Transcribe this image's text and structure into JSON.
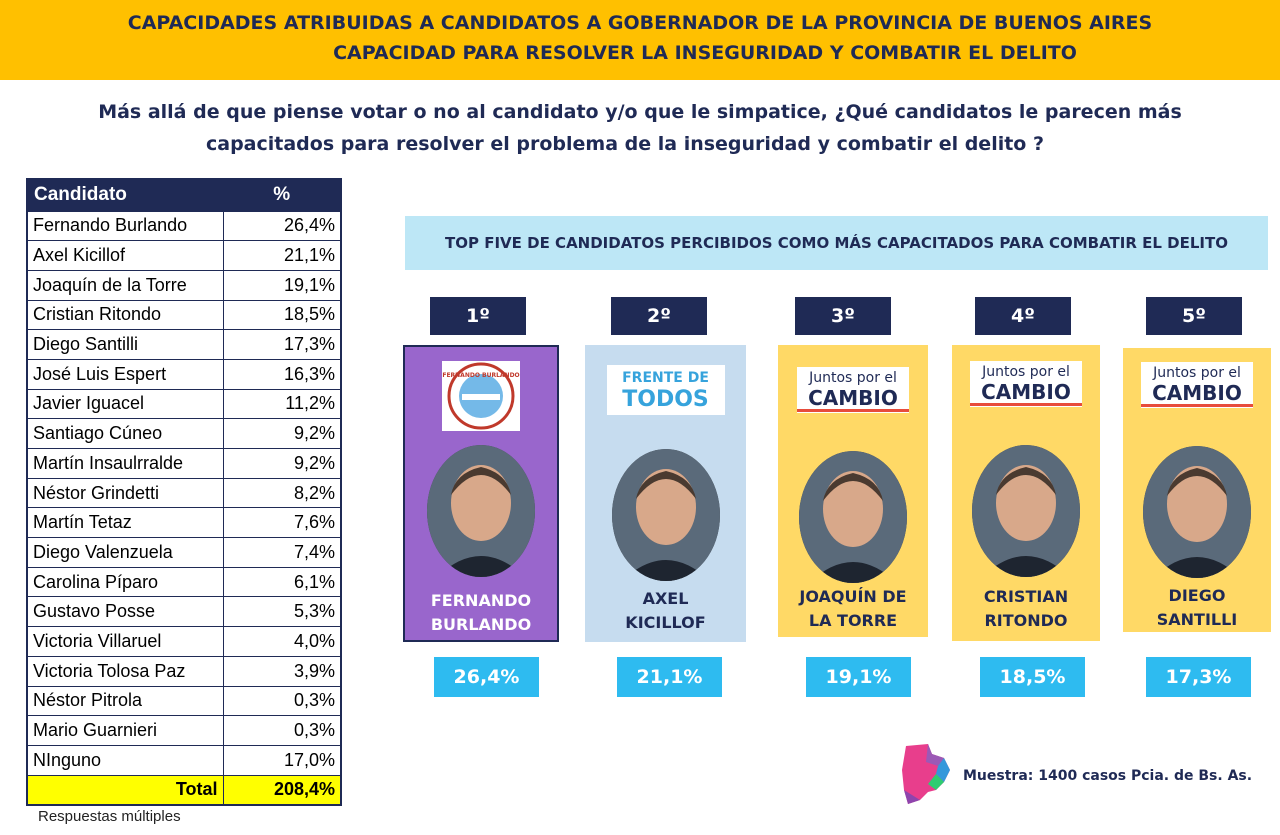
{
  "header": {
    "line1": "CAPACIDADES ATRIBUIDAS A CANDIDATOS A GOBERNADOR DE LA PROVINCIA DE BUENOS AIRES",
    "line2": "CAPACIDAD PARA RESOLVER LA INSEGURIDAD Y COMBATIR EL DELITO"
  },
  "question": {
    "line1": "Más allá de que piense votar o no al candidato y/o que le simpatice, ¿Qué candidatos le parecen más",
    "line2": "capacitados para resolver el problema de la inseguridad y combatir el delito ?"
  },
  "table": {
    "col_candidate": "Candidato",
    "col_pct": "%",
    "total_label": "Total",
    "total_value": "208,4%",
    "note": "Respuestas múltiples"
  },
  "top_five_title": "TOP FIVE DE CANDIDATOS PERCIBIDOS COMO MÁS CAPACITADOS PARA COMBATIR EL DELITO",
  "top_five": [
    {
      "rank": "1º",
      "name1": "FERNANDO",
      "name2": "BURLANDO",
      "pct": "26,4%",
      "logo": "FERNANDO BURLANDO",
      "logo_icon": "burlando-party-seal",
      "bg": "#9966cc"
    },
    {
      "rank": "2º",
      "name1": "AXEL",
      "name2": "KICILLOF",
      "pct": "21,1%",
      "logo": "FRENTE DE",
      "logo2": "TODOS",
      "logo_icon": "frente-de-todos-logo",
      "bg": "#c6dcef"
    },
    {
      "rank": "3º",
      "name1": "JOAQUÍN DE",
      "name2": "LA TORRE",
      "pct": "19,1%",
      "logo": "Juntos por el",
      "logo2": "CAMBIO",
      "logo_icon": "juntos-por-el-cambio-logo",
      "bg": "#ffd966"
    },
    {
      "rank": "4º",
      "name1": "CRISTIAN",
      "name2": "RITONDO",
      "pct": "18,5%",
      "logo": "Juntos por el",
      "logo2": "CAMBIO",
      "logo_icon": "juntos-por-el-cambio-logo",
      "bg": "#ffd966"
    },
    {
      "rank": "5º",
      "name1": "DIEGO",
      "name2": "SANTILLI",
      "pct": "17,3%",
      "logo": "Juntos por el",
      "logo2": "CAMBIO",
      "logo_icon": "juntos-por-el-cambio-logo",
      "bg": "#ffd966"
    }
  ],
  "sample": "Muestra: 1400 casos Pcia. de Bs. As.",
  "chart_data": {
    "type": "table",
    "columns": [
      "Candidato",
      "%"
    ],
    "rows": [
      [
        "Fernando Burlando",
        "26,4%"
      ],
      [
        "Axel Kicillof",
        "21,1%"
      ],
      [
        "Joaquín de la Torre",
        "19,1%"
      ],
      [
        "Cristian Ritondo",
        "18,5%"
      ],
      [
        "Diego Santilli",
        "17,3%"
      ],
      [
        "José Luis Espert",
        "16,3%"
      ],
      [
        "Javier Iguacel",
        "11,2%"
      ],
      [
        "Santiago Cúneo",
        "9,2%"
      ],
      [
        "Martín Insaulrralde",
        "9,2%"
      ],
      [
        "Néstor Grindetti",
        "8,2%"
      ],
      [
        "Martín Tetaz",
        "7,6%"
      ],
      [
        "Diego Valenzuela",
        "7,4%"
      ],
      [
        "Carolina Píparo",
        "6,1%"
      ],
      [
        "Gustavo Posse",
        "5,3%"
      ],
      [
        "Victoria Villaruel",
        "4,0%"
      ],
      [
        "Victoria Tolosa Paz",
        "3,9%"
      ],
      [
        "Néstor Pitrola",
        "0,3%"
      ],
      [
        "Mario Guarnieri",
        "0,3%"
      ],
      [
        "NInguno",
        "17,0%"
      ]
    ]
  }
}
